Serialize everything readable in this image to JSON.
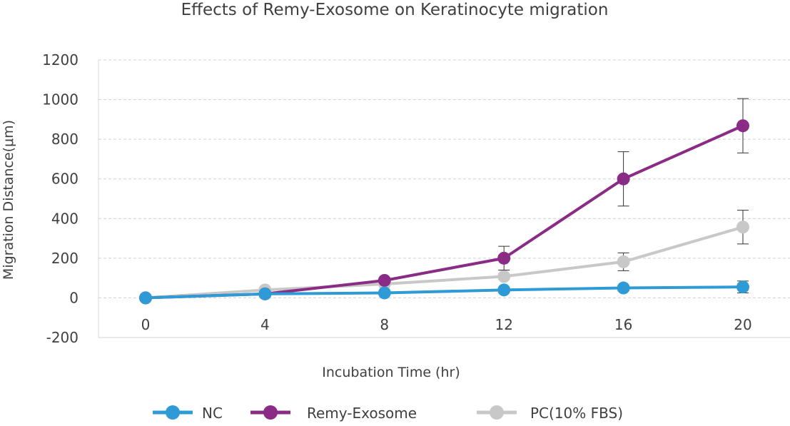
{
  "chart_data": {
    "type": "line",
    "title": "Effects of Remy-Exosome on Keratinocyte migration",
    "xlabel": "Incubation Time (hr)",
    "ylabel": "Migration Distance(μm)",
    "x": [
      0,
      4,
      8,
      12,
      16,
      20
    ],
    "x_tick_labels": [
      "0",
      "4",
      "8",
      "12",
      "16",
      "20"
    ],
    "y_tick_labels": [
      "-200",
      "0",
      "200",
      "400",
      "600",
      "800",
      "1000",
      "1200"
    ],
    "ylim": [
      -200,
      1200
    ],
    "grid": "horizontal dashed",
    "legend_position": "bottom",
    "series": [
      {
        "name": "NC",
        "color": "#2E9BD6",
        "values": [
          0,
          20,
          25,
          40,
          50,
          55
        ],
        "error": [
          0,
          0,
          0,
          0,
          0,
          30
        ]
      },
      {
        "name": "Remy-Exosome",
        "color": "#8A2C86",
        "values": [
          0,
          20,
          88,
          200,
          600,
          868
        ],
        "error": [
          0,
          0,
          0,
          60,
          137,
          137
        ]
      },
      {
        "name": "PC(10% FBS)",
        "color": "#C8C8C8",
        "values": [
          0,
          40,
          70,
          108,
          182,
          357
        ],
        "error": [
          0,
          0,
          0,
          0,
          45,
          85
        ]
      }
    ]
  }
}
